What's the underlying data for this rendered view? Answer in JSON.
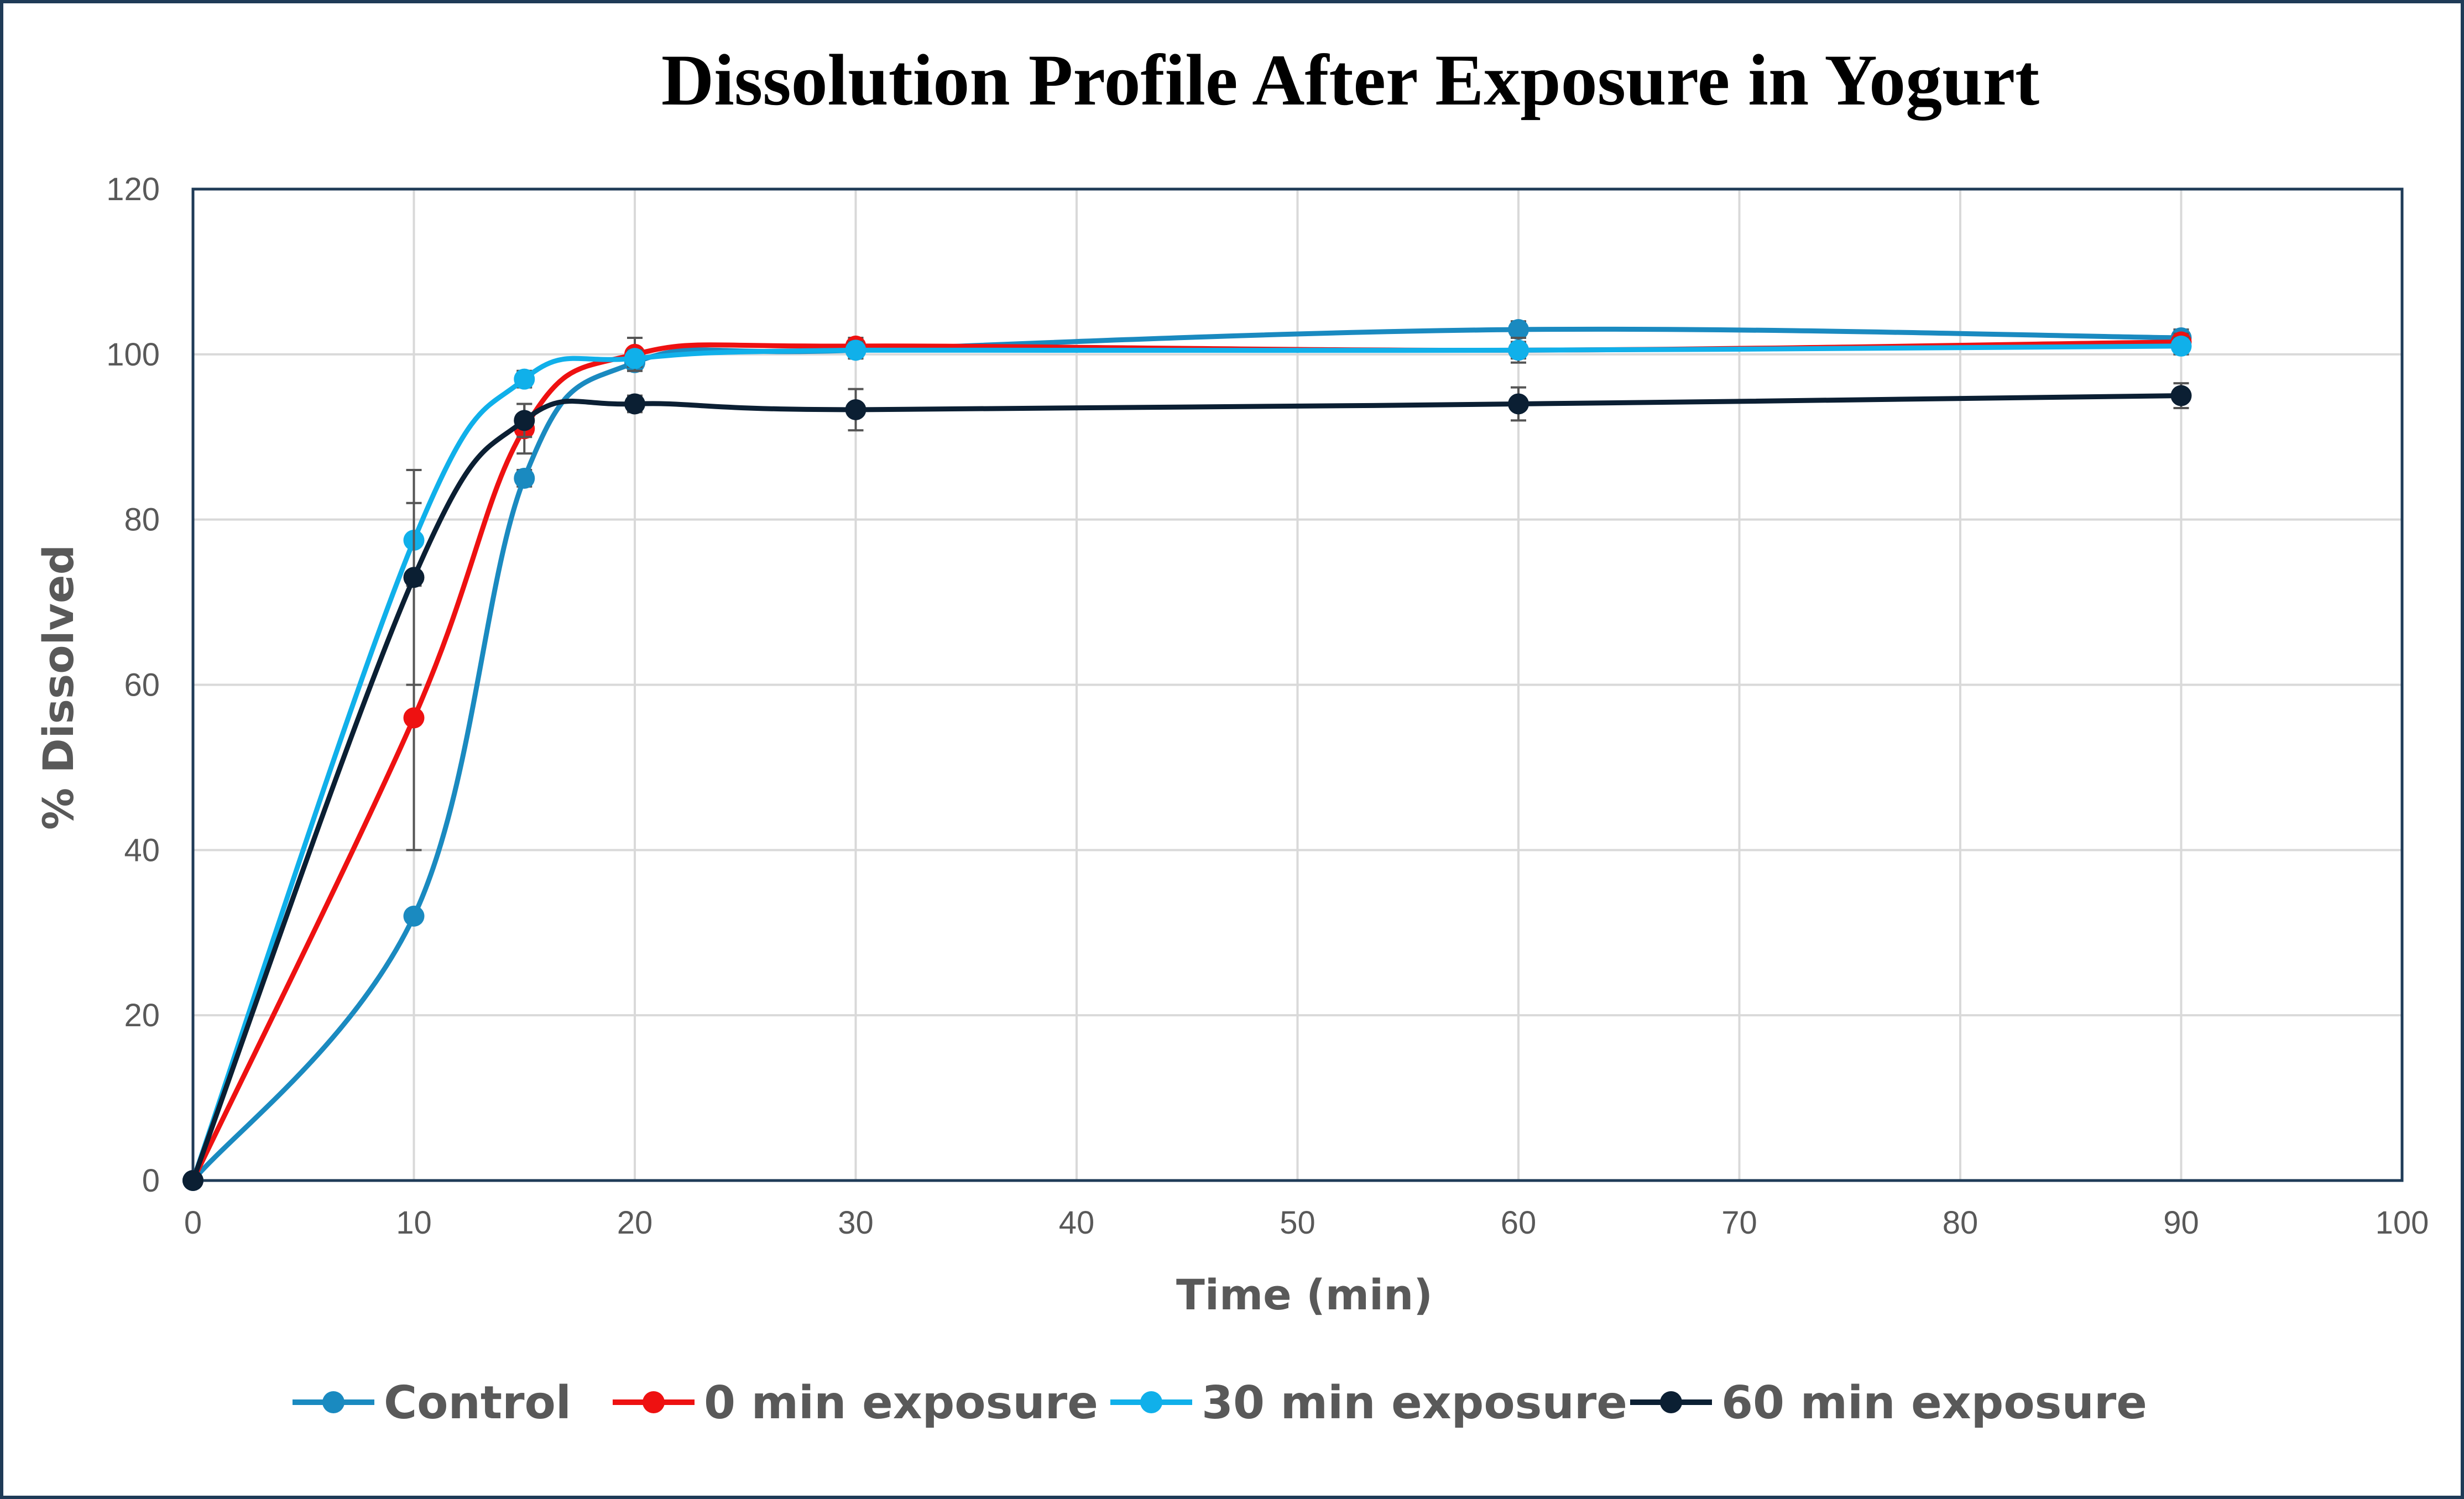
{
  "chart_data": {
    "type": "line",
    "title": "Dissolution Profile After Exposure in Yogurt",
    "xlabel": "Time (min)",
    "ylabel": "% Dissolved",
    "xlim": [
      0,
      100
    ],
    "ylim": [
      0,
      120
    ],
    "xticks": [
      0,
      10,
      20,
      30,
      40,
      50,
      60,
      70,
      80,
      90,
      100
    ],
    "yticks": [
      0,
      20,
      40,
      60,
      80,
      100,
      120
    ],
    "grid": true,
    "smooth": true,
    "legend_position": "bottom",
    "series": [
      {
        "name": "Control",
        "color": "#1a8ac0",
        "x": [
          0,
          10,
          15,
          20,
          30,
          60,
          90
        ],
        "y": [
          0,
          32,
          85,
          99,
          100.5,
          103,
          102
        ],
        "err": [
          0,
          0,
          1,
          1,
          1,
          1,
          1
        ]
      },
      {
        "name": "0 min exposure",
        "color": "#ee1111",
        "x": [
          0,
          10,
          15,
          20,
          30,
          60,
          90
        ],
        "y": [
          0,
          56,
          91,
          100,
          101,
          100.5,
          101.5
        ],
        "err": [
          0,
          16,
          3,
          2,
          1,
          1,
          1
        ]
      },
      {
        "name": "30 min exposure",
        "color": "#10b0ea",
        "x": [
          0,
          10,
          15,
          20,
          30,
          60,
          90
        ],
        "y": [
          0,
          77.5,
          97,
          99.5,
          100.5,
          100.5,
          101
        ],
        "err": [
          0,
          4.5,
          1,
          1,
          1,
          1.5,
          1
        ]
      },
      {
        "name": "60 min exposure",
        "color": "#0b1f33",
        "x": [
          0,
          10,
          15,
          20,
          30,
          60,
          90
        ],
        "y": [
          0,
          73,
          92,
          94,
          93.3,
          94,
          95
        ],
        "err": [
          0,
          13,
          2,
          1,
          2.5,
          2,
          1.5
        ]
      }
    ]
  }
}
